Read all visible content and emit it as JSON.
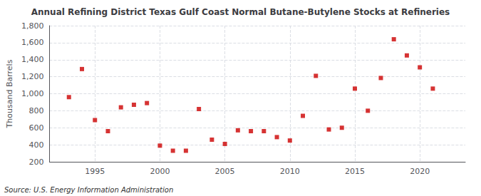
{
  "chart_data": {
    "type": "scatter",
    "title": "Annual Refining District Texas Gulf Coast Normal Butane-Butylene Stocks at Refineries",
    "ylabel": "Thousand Barrels",
    "source": "Source: U.S. Energy Information Administration",
    "x": [
      1993,
      1994,
      1995,
      1996,
      1997,
      1998,
      1999,
      2000,
      2001,
      2002,
      2003,
      2004,
      2005,
      2006,
      2007,
      2008,
      2009,
      2010,
      2011,
      2012,
      2013,
      2014,
      2015,
      2016,
      2017,
      2018,
      2019,
      2020,
      2021
    ],
    "values": [
      960,
      1290,
      690,
      560,
      840,
      870,
      890,
      390,
      330,
      330,
      820,
      460,
      410,
      570,
      560,
      560,
      490,
      450,
      740,
      1210,
      580,
      600,
      1060,
      800,
      1185,
      1640,
      1450,
      1310,
      1060
    ],
    "color": "#cc0000",
    "marker": "square",
    "xlim": [
      1991.5,
      2023.5
    ],
    "xticks": [
      1995,
      2000,
      2005,
      2010,
      2015,
      2020
    ],
    "ylim": [
      200,
      1800
    ],
    "yticks": [
      200,
      400,
      600,
      800,
      {
        "value": 1000,
        "label": "1,000"
      },
      {
        "value": 1200,
        "label": "1,200"
      },
      {
        "value": 1400,
        "label": "1,400"
      },
      {
        "value": 1600,
        "label": "1,600"
      },
      {
        "value": 1800,
        "label": "1,800"
      }
    ],
    "grid": true
  }
}
